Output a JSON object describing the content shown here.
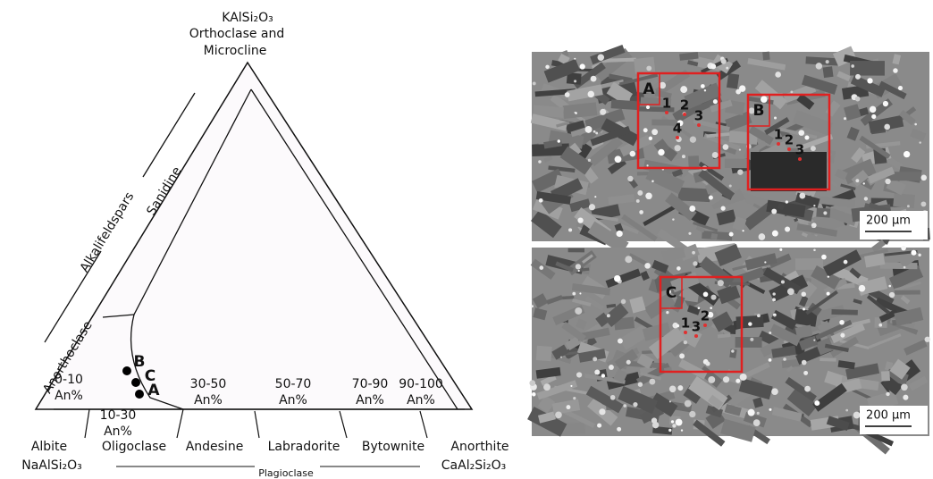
{
  "diagram": {
    "corners": {
      "top": {
        "formula": "KAlSi₂O₃",
        "name_line1": "Orthoclase and",
        "name_line2": "Microcline"
      },
      "left": {
        "name": "Albite",
        "formula": "NaAlSi₂O₃"
      },
      "right": {
        "name": "Anorthite",
        "formula": "CaAl₂Si₂O₃"
      }
    },
    "side_labels": {
      "anorthoclase": "Anorthoclase",
      "alkalifeldspars": "Alkalifeldspars",
      "sanidine": "Sanidine"
    },
    "fields": [
      {
        "line1": "0-10",
        "line2": "An%"
      },
      {
        "line1": "10-30",
        "line2": "An%"
      },
      {
        "line1": "30-50",
        "line2": "An%"
      },
      {
        "line1": "50-70",
        "line2": "An%"
      },
      {
        "line1": "70-90",
        "line2": "An%"
      },
      {
        "line1": "90-100",
        "line2": "An%"
      }
    ],
    "plagioclase_names": [
      "Oligoclase",
      "Andesine",
      "Labradorite",
      "Bytownite"
    ],
    "plagioclase_label": "Plagioclase",
    "points": [
      "B",
      "C",
      "A"
    ]
  },
  "images": [
    {
      "boxes": [
        {
          "label": "A",
          "spots": [
            "1",
            "2",
            "3",
            "4"
          ]
        },
        {
          "label": "B",
          "spots": [
            "1",
            "2",
            "3"
          ]
        }
      ],
      "scale": "200 μm"
    },
    {
      "boxes": [
        {
          "label": "C",
          "spots": [
            "1",
            "3",
            "2"
          ]
        }
      ],
      "scale": "200 μm"
    }
  ]
}
